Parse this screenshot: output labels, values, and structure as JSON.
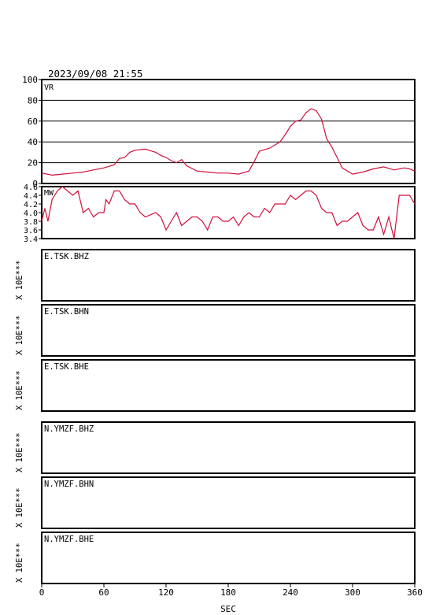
{
  "header": {
    "datetime": "2023/09/08 21:55"
  },
  "chart_data": {
    "type": "line",
    "x_axis": {
      "label": "SEC",
      "range": [
        0,
        360
      ],
      "ticks": [
        0,
        60,
        120,
        180,
        240,
        300,
        360
      ]
    },
    "panels": [
      {
        "id": "vr",
        "label": "VR",
        "ylim": [
          0,
          100
        ],
        "yticks": [
          "100",
          "80",
          "60",
          "40",
          "20",
          "0"
        ],
        "ytick_values": [
          100,
          80,
          60,
          40,
          20,
          0
        ],
        "grid": true,
        "series": {
          "x": [
            0,
            10,
            20,
            30,
            40,
            50,
            60,
            70,
            75,
            80,
            85,
            90,
            100,
            110,
            115,
            120,
            125,
            130,
            135,
            140,
            150,
            160,
            170,
            180,
            190,
            200,
            205,
            210,
            220,
            230,
            235,
            240,
            245,
            250,
            255,
            260,
            265,
            270,
            275,
            280,
            285,
            290,
            300,
            310,
            320,
            330,
            340,
            350,
            355,
            360
          ],
          "y": [
            10,
            8,
            9,
            10,
            11,
            13,
            15,
            18,
            24,
            25,
            30,
            32,
            33,
            30,
            27,
            25,
            22,
            20,
            23,
            17,
            12,
            11,
            10,
            10,
            9,
            12,
            21,
            31,
            34,
            40,
            47,
            55,
            60,
            61,
            68,
            72,
            70,
            62,
            43,
            35,
            25,
            15,
            9,
            11,
            14,
            16,
            13,
            15,
            14,
            12
          ]
        }
      },
      {
        "id": "mw",
        "label": "MW",
        "ylim": [
          3.4,
          4.6
        ],
        "yticks": [
          "4.6",
          "4.4",
          "4.2",
          "4.0",
          "3.8",
          "3.6",
          "3.4"
        ],
        "ytick_values": [
          4.6,
          4.4,
          4.2,
          4.0,
          3.8,
          3.6,
          3.4
        ],
        "grid": false,
        "series": {
          "x": [
            0,
            3,
            6,
            10,
            15,
            20,
            25,
            30,
            35,
            40,
            45,
            50,
            55,
            60,
            62,
            65,
            70,
            75,
            80,
            85,
            90,
            95,
            100,
            110,
            115,
            120,
            125,
            130,
            135,
            140,
            145,
            150,
            155,
            160,
            165,
            170,
            175,
            180,
            185,
            190,
            195,
            200,
            205,
            210,
            215,
            220,
            225,
            230,
            235,
            240,
            245,
            250,
            255,
            260,
            265,
            270,
            275,
            280,
            285,
            290,
            295,
            300,
            305,
            310,
            315,
            320,
            325,
            330,
            335,
            338,
            340,
            345,
            350,
            355,
            360
          ],
          "y": [
            3.8,
            4.1,
            3.8,
            4.3,
            4.5,
            4.6,
            4.5,
            4.4,
            4.5,
            4.0,
            4.1,
            3.9,
            4.0,
            4.0,
            4.3,
            4.2,
            4.5,
            4.5,
            4.3,
            4.2,
            4.2,
            4.0,
            3.9,
            4.0,
            3.9,
            3.6,
            3.8,
            4.0,
            3.7,
            3.8,
            3.9,
            3.9,
            3.8,
            3.6,
            3.9,
            3.9,
            3.8,
            3.8,
            3.9,
            3.7,
            3.9,
            4.0,
            3.9,
            3.9,
            4.1,
            4.0,
            4.2,
            4.2,
            4.2,
            4.4,
            4.3,
            4.4,
            4.5,
            4.5,
            4.4,
            4.1,
            4.0,
            4.0,
            3.7,
            3.8,
            3.8,
            3.9,
            4.0,
            3.7,
            3.6,
            3.6,
            3.9,
            3.5,
            3.9,
            3.6,
            3.4,
            4.4,
            4.4,
            4.4,
            4.2
          ]
        }
      }
    ],
    "stations": [
      {
        "name": "E.TSK.BHZ",
        "ylabel": "X 10E***"
      },
      {
        "name": "E.TSK.BHN",
        "ylabel": "X 10E***"
      },
      {
        "name": "E.TSK.BHE",
        "ylabel": "X 10E***"
      },
      {
        "name": "N.YMZF.BHZ",
        "ylabel": "X 10E***"
      },
      {
        "name": "N.YMZF.BHN",
        "ylabel": "X 10E***"
      },
      {
        "name": "N.YMZF.BHE",
        "ylabel": "X 10E***"
      }
    ],
    "colors": {
      "trace": "#d0103a",
      "axes": "#000000"
    }
  }
}
